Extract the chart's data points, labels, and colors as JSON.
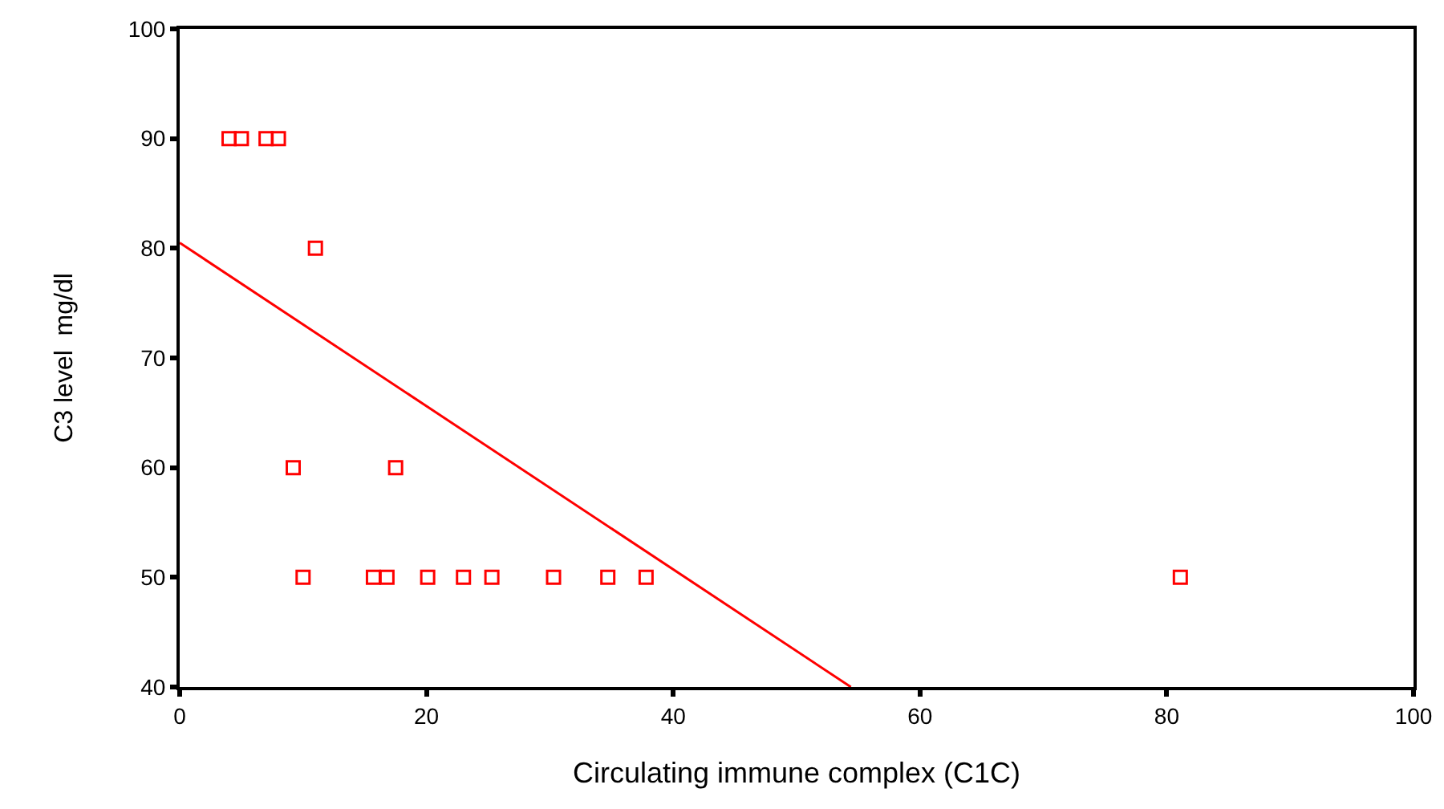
{
  "chart_data": {
    "type": "scatter",
    "xlabel": "Circulating immune complex (C1C)",
    "ylabel": "C3 level  mg/dl",
    "xlim": [
      0,
      100
    ],
    "xticks": [
      0,
      20,
      40,
      60,
      80,
      100
    ],
    "ylim": [
      40,
      100
    ],
    "yticks": [
      40,
      50,
      60,
      70,
      80,
      90,
      100
    ],
    "grid": false,
    "series": [
      {
        "marker": "square",
        "color": "#ff0000",
        "x": [
          4,
          5,
          7,
          8,
          11,
          9.2,
          17.5,
          10,
          15.7,
          16.8,
          20.1,
          23,
          25.3,
          30.3,
          34.7,
          37.8,
          81.1
        ],
        "values": [
          90,
          90,
          90,
          90,
          80,
          60,
          60,
          50,
          50,
          50,
          50,
          50,
          50,
          50,
          50,
          50,
          50
        ]
      },
      {
        "type": "line",
        "marker": "none",
        "color": "#ff0000",
        "line_style": "solid",
        "x": [
          0,
          54.4
        ],
        "values": [
          80.5,
          40
        ]
      }
    ]
  }
}
